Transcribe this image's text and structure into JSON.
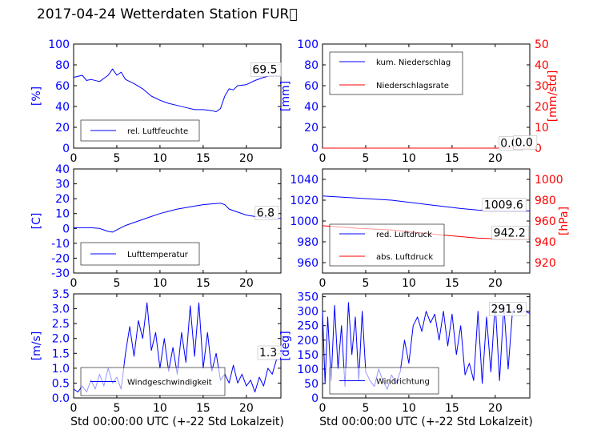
{
  "title": "2017-04-24 Wetterdaten Station FUR\u0000",
  "colors": {
    "blue": "#0000ff",
    "red": "#ff0000",
    "axis": "#000000"
  },
  "chart_data": [
    {
      "id": "humidity",
      "type": "line",
      "ylabel": "[%]",
      "xlabel": "",
      "xlim": [
        0,
        24
      ],
      "ylim": [
        0,
        100
      ],
      "xticks": [
        0,
        5,
        10,
        15,
        20
      ],
      "yticks": [
        0,
        20,
        40,
        60,
        80,
        100
      ],
      "legend": {
        "position": "bottom-left",
        "entries": [
          "rel. Luftfeuchte"
        ]
      },
      "annotations": [
        "69.5"
      ],
      "series": [
        {
          "name": "rel. Luftfeuchte",
          "color": "#0000ff",
          "x": [
            0,
            1,
            1.5,
            2,
            3,
            4,
            4.5,
            5,
            5.5,
            6,
            7,
            8,
            9,
            10,
            11,
            12,
            13,
            14,
            15,
            16,
            16.5,
            17,
            17.5,
            18,
            18.5,
            19,
            20,
            21,
            22,
            23,
            24
          ],
          "y": [
            68,
            70,
            65,
            66,
            64,
            70,
            76,
            70,
            73,
            66,
            62,
            57,
            50,
            46,
            43,
            41,
            39,
            37,
            37,
            36,
            35,
            38,
            50,
            57,
            56,
            60,
            61,
            65,
            68,
            70,
            69.5
          ]
        }
      ]
    },
    {
      "id": "precip",
      "type": "line",
      "ylabel": "[mm]",
      "ylabel2": "[mm/std]",
      "xlabel": "",
      "xlim": [
        0,
        24
      ],
      "ylim": [
        0,
        100
      ],
      "ylim2": [
        0,
        50
      ],
      "xticks": [
        0,
        5,
        10,
        15,
        20
      ],
      "yticks": [
        0,
        20,
        40,
        60,
        80,
        100
      ],
      "yticks2": [
        0,
        10,
        20,
        30,
        40,
        50
      ],
      "legend": {
        "position": "top-left",
        "entries": [
          "kum. Niederschlag",
          "Niederschlagsrate"
        ]
      },
      "annotations": [
        "0.0",
        "0.0"
      ],
      "series": [
        {
          "name": "kum. Niederschlag",
          "color": "#0000ff",
          "axis": "left",
          "x": [
            0,
            24
          ],
          "y": [
            0,
            0
          ]
        },
        {
          "name": "Niederschlagsrate",
          "color": "#ff0000",
          "axis": "right",
          "x": [
            0,
            24
          ],
          "y": [
            0,
            0
          ]
        }
      ]
    },
    {
      "id": "temperature",
      "type": "line",
      "ylabel": "[C]",
      "xlabel": "",
      "xlim": [
        0,
        24
      ],
      "ylim": [
        -30,
        40
      ],
      "xticks": [
        0,
        5,
        10,
        15,
        20
      ],
      "yticks": [
        -30,
        -20,
        -10,
        0,
        10,
        20,
        30,
        40
      ],
      "legend": {
        "position": "bottom-left",
        "entries": [
          "Lufttemperatur"
        ]
      },
      "annotations": [
        "6.8"
      ],
      "series": [
        {
          "name": "Lufttemperatur",
          "color": "#0000ff",
          "x": [
            0,
            1,
            2,
            3,
            3.5,
            4,
            4.5,
            5,
            6,
            7,
            8,
            9,
            10,
            11,
            12,
            13,
            14,
            15,
            16,
            17,
            17.5,
            18,
            19,
            20,
            21,
            22,
            23,
            24
          ],
          "y": [
            0.5,
            0.5,
            0.5,
            0,
            -1,
            -2,
            -2.5,
            -1,
            2,
            4,
            6,
            8,
            10,
            11.5,
            13,
            14,
            15,
            16,
            16.5,
            17,
            16,
            13,
            11,
            9,
            8,
            7.5,
            7,
            6.8
          ]
        }
      ]
    },
    {
      "id": "pressure",
      "type": "line",
      "ylabel": "",
      "ylabel2": "[hPa]",
      "xlabel": "",
      "xlim": [
        0,
        24
      ],
      "ylim": [
        950,
        1050
      ],
      "ylim2": [
        910,
        1010
      ],
      "xticks": [
        0,
        5,
        10,
        15,
        20
      ],
      "yticks": [
        960,
        980,
        1000,
        1020,
        1040
      ],
      "yticks2": [
        920,
        940,
        960,
        980,
        1000
      ],
      "legend": {
        "position": "bottom-left",
        "entries": [
          "red. Luftdruck",
          "abs. Luftdruck"
        ]
      },
      "annotations": [
        "1009.6",
        "942.2"
      ],
      "series": [
        {
          "name": "red. Luftdruck",
          "color": "#0000ff",
          "axis": "left",
          "x": [
            0,
            4,
            8,
            12,
            16,
            18,
            20,
            24
          ],
          "y": [
            1024,
            1022,
            1020,
            1016,
            1012,
            1010.5,
            1010,
            1009.6
          ]
        },
        {
          "name": "abs. Luftdruck",
          "color": "#ff0000",
          "axis": "right",
          "x": [
            0,
            4,
            8,
            12,
            16,
            18,
            20,
            24
          ],
          "y": [
            955.5,
            953,
            951.5,
            948,
            945,
            943.5,
            943,
            942.2
          ]
        }
      ]
    },
    {
      "id": "windspeed",
      "type": "line",
      "ylabel": "[m/s]",
      "xlabel": "Std 00:00:00 UTC (+-22 Std Lokalzeit)",
      "xlim": [
        0,
        24
      ],
      "ylim": [
        0,
        3.5
      ],
      "xticks": [
        0,
        5,
        10,
        15,
        20
      ],
      "yticks": [
        0.0,
        0.5,
        1.0,
        1.5,
        2.0,
        2.5,
        3.0,
        3.5
      ],
      "legend": {
        "position": "bottom-left",
        "entries": [
          "Windgeschwindigkeit"
        ]
      },
      "annotations": [
        "1.3"
      ],
      "series": [
        {
          "name": "Windgeschwindigkeit",
          "color": "#0000ff",
          "x": [
            0,
            0.5,
            1,
            1.5,
            2,
            2.5,
            3,
            3.5,
            4,
            4.5,
            5,
            5.5,
            6,
            6.5,
            7,
            7.5,
            8,
            8.5,
            9,
            9.5,
            10,
            10.5,
            11,
            11.5,
            12,
            12.5,
            13,
            13.5,
            14,
            14.5,
            15,
            15.5,
            16,
            16.5,
            17,
            17.5,
            18,
            18.5,
            19,
            19.5,
            20,
            20.5,
            21,
            21.5,
            22,
            22.5,
            23,
            23.5,
            24
          ],
          "y": [
            0.3,
            0.2,
            0.4,
            0.2,
            0.6,
            0.3,
            0.8,
            0.4,
            1.0,
            0.5,
            0.7,
            0.3,
            1.5,
            2.4,
            1.4,
            2.6,
            2.0,
            3.2,
            1.6,
            2.2,
            1.0,
            2.0,
            0.9,
            1.7,
            0.8,
            2.2,
            1.2,
            3.1,
            1.4,
            3.2,
            1.0,
            2.2,
            0.9,
            1.5,
            0.6,
            0.8,
            0.5,
            1.1,
            0.5,
            0.8,
            0.4,
            0.6,
            0.2,
            0.7,
            0.4,
            1.0,
            0.8,
            1.3,
            1.3
          ]
        }
      ]
    },
    {
      "id": "winddirection",
      "type": "line",
      "ylabel": "[deg]",
      "xlabel": "Std 00:00:00 UTC (+-22 Std Lokalzeit)",
      "xlim": [
        0,
        24
      ],
      "ylim": [
        0,
        360
      ],
      "xticks": [
        0,
        5,
        10,
        15,
        20
      ],
      "yticks": [
        0,
        50,
        100,
        150,
        200,
        250,
        300,
        350
      ],
      "legend": {
        "position": "bottom-left",
        "entries": [
          "Windrichtung"
        ]
      },
      "annotations": [
        "291.9"
      ],
      "series": [
        {
          "name": "Windrichtung",
          "color": "#0000ff",
          "x": [
            0,
            0.3,
            0.6,
            1,
            1.4,
            1.8,
            2.2,
            2.6,
            3,
            3.4,
            3.8,
            4.2,
            4.6,
            5,
            5.5,
            6,
            6.5,
            7,
            7.5,
            8,
            8.5,
            9,
            9.5,
            10,
            10.5,
            11,
            11.5,
            12,
            12.5,
            13,
            13.5,
            14,
            14.5,
            15,
            15.5,
            16,
            16.5,
            17,
            17.5,
            18,
            18.5,
            19,
            19.5,
            20,
            20.5,
            21,
            21.5,
            22,
            22.5,
            23,
            23.5,
            24
          ],
          "y": [
            300,
            50,
            280,
            60,
            320,
            100,
            250,
            40,
            330,
            150,
            280,
            60,
            300,
            90,
            60,
            40,
            100,
            60,
            30,
            80,
            50,
            90,
            200,
            120,
            250,
            280,
            230,
            300,
            260,
            290,
            200,
            300,
            180,
            290,
            150,
            250,
            80,
            120,
            60,
            300,
            50,
            280,
            90,
            330,
            60,
            320,
            100,
            300,
            310,
            295,
            300,
            291.9
          ]
        }
      ]
    }
  ]
}
